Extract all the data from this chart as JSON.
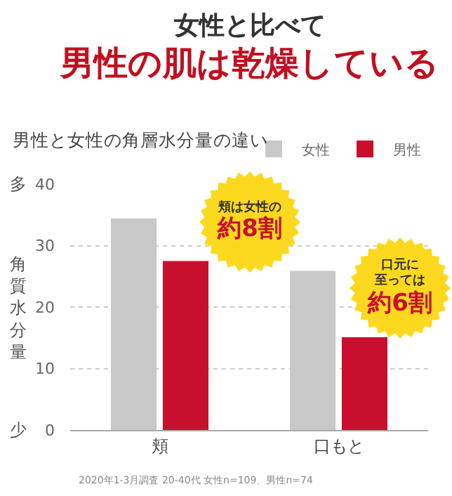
{
  "chart_data": {
    "type": "bar",
    "title": "女性と比べて",
    "subtitle": "男性の肌は乾燥している",
    "ylabel": "角質水分量",
    "categories": [
      "頬",
      "口もと"
    ],
    "series": [
      {
        "name": "女性",
        "color": "#c8c8c8",
        "values": [
          34.4,
          25.9
        ]
      },
      {
        "name": "男性",
        "color": "#c8102e",
        "values": [
          27.5,
          15.1
        ]
      }
    ],
    "ylim": [
      0,
      40
    ],
    "yticks": [
      0,
      10,
      20,
      30,
      40
    ],
    "grid": "y",
    "legend": "top right",
    "annotations": [
      "男性と女性の角層水分量の違い",
      "多",
      "少",
      "頬は女性の",
      "約8割",
      "口元に",
      "至っては",
      "約6割",
      "2020年1-3月調査 20-40代 女性n=109、男性n=74"
    ]
  }
}
